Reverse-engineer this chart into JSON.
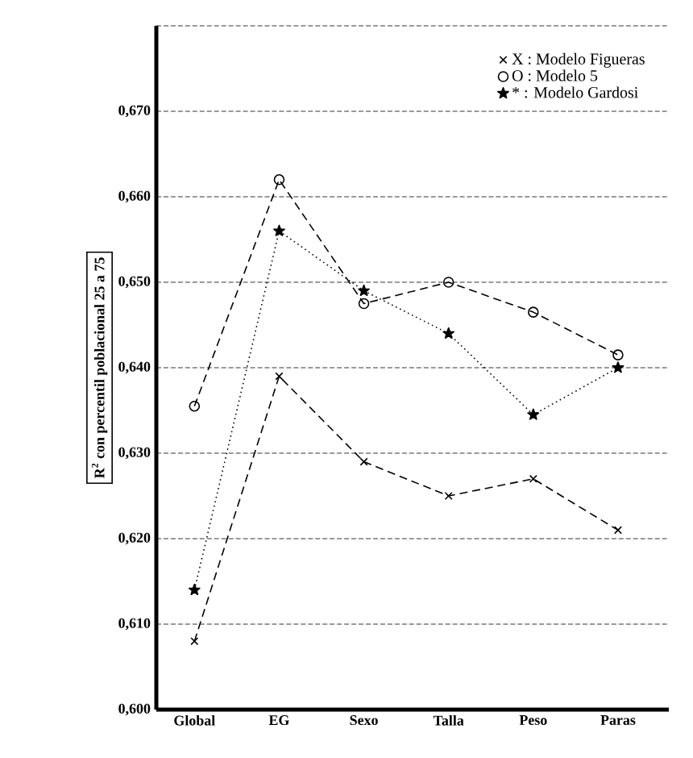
{
  "chart_data": {
    "type": "line",
    "ylabel": "R$^{2}$ con percentil poblacional 25 a 75",
    "categories": [
      "Global",
      "EG",
      "Sexo",
      "Talla",
      "Peso",
      "Paras"
    ],
    "series": [
      {
        "name": "X : Modelo Figueras",
        "color": "#000000",
        "marker": "cross",
        "line_style": "dashed",
        "values": [
          0.608,
          0.639,
          0.629,
          0.625,
          0.627,
          0.621
        ]
      },
      {
        "name": "O : Modelo 5",
        "color": "#000000",
        "marker": "circle",
        "line_style": "dashed",
        "values": [
          0.6355,
          0.662,
          0.6475,
          0.65,
          0.6465,
          0.6415
        ]
      },
      {
        "name": "* : Modelo Gardosi",
        "color": "#000000",
        "marker": "star",
        "line_style": "dotted",
        "values": [
          0.614,
          0.656,
          0.649,
          0.644,
          0.6345,
          0.64
        ]
      }
    ],
    "ylim": [
      0.6,
      0.68
    ],
    "yticks": [
      {
        "value": 0.6,
        "label": "0,600"
      },
      {
        "value": 0.61,
        "label": "0,610"
      },
      {
        "value": 0.62,
        "label": "0,620"
      },
      {
        "value": 0.63,
        "label": "0,630"
      },
      {
        "value": 0.64,
        "label": "0,640"
      },
      {
        "value": 0.65,
        "label": "0,650"
      },
      {
        "value": 0.66,
        "label": "0,660"
      },
      {
        "value": 0.67,
        "label": "0,670"
      },
      {
        "value": 0.68,
        "label": null
      }
    ],
    "grid": "y",
    "legend": "top right"
  }
}
